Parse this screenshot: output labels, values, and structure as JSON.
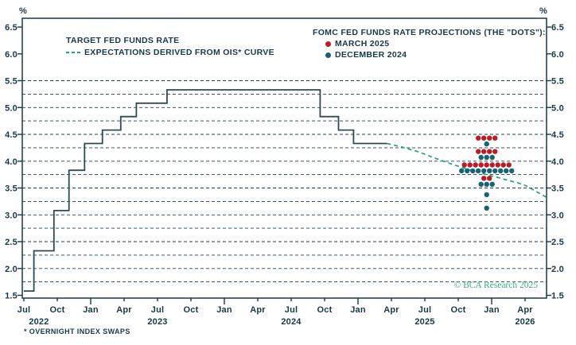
{
  "legend_left": {
    "line1": "TARGET FED FUNDS RATE",
    "line2": "EXPECTATIONS DERIVED FROM OIS* CURVE"
  },
  "legend_right": {
    "title": "FOMC FED FUNDS RATE PROJECTIONS (THE \"DOTS\"):",
    "items": [
      {
        "label": "MARCH 2025",
        "color": "#BC1B26"
      },
      {
        "label": "DECEMBER 2024",
        "color": "#156476"
      }
    ]
  },
  "footnote": "* OVERNIGHT INDEX SWAPS",
  "copyright": "© BCA Research 2025",
  "chart_data": {
    "type": "line",
    "title": "",
    "y_axis": {
      "unit": "%",
      "min": 1.5,
      "max": 6.5,
      "tick_step": 0.5,
      "tick_labels": [
        "6.5",
        "6.0",
        "5.5",
        "5.0",
        "4.5",
        "4.0",
        "3.5",
        "3.0",
        "2.5",
        "2.0",
        "1.5"
      ],
      "grid_values": [
        5.5,
        5.25,
        5.0,
        4.75,
        4.5,
        4.25,
        4.0,
        3.75,
        3.5,
        3.25,
        3.0,
        2.75,
        2.5,
        2.25,
        2.0,
        1.75
      ]
    },
    "x_axis": {
      "unit": "months_since_2022_07",
      "tick_labels": [
        "Jul",
        "Oct",
        "Jan",
        "Apr",
        "Jul",
        "Oct",
        "Jan",
        "Apr",
        "Jul",
        "Oct",
        "Jan",
        "Apr",
        "Jul",
        "Oct",
        "Jan",
        "Apr"
      ],
      "year_labels": [
        {
          "label": "2022",
          "q": 0.45
        },
        {
          "label": "2023",
          "q": 4
        },
        {
          "label": "2024",
          "q": 8
        },
        {
          "label": "2025",
          "q": 12
        },
        {
          "label": "2026",
          "q": 15
        }
      ]
    },
    "series": [
      {
        "name": "TARGET FED FUNDS RATE",
        "type": "step",
        "color": "#2C4B57",
        "points": [
          [
            0,
            1.58
          ],
          [
            0.9,
            2.33
          ],
          [
            2.7,
            3.08
          ],
          [
            4.05,
            3.83
          ],
          [
            5.45,
            4.33
          ],
          [
            7.05,
            4.58
          ],
          [
            8.7,
            4.83
          ],
          [
            10.1,
            5.08
          ],
          [
            12.85,
            5.33
          ],
          [
            26.6,
            4.83
          ],
          [
            28.25,
            4.58
          ],
          [
            29.6,
            4.33
          ],
          [
            32.6,
            4.33
          ]
        ]
      },
      {
        "name": "EXPECTATIONS DERIVED FROM OIS* CURVE",
        "type": "dashed_line",
        "color": "#1FA57F",
        "points": [
          [
            32.6,
            4.33
          ],
          [
            34,
            4.26
          ],
          [
            35.5,
            4.17
          ],
          [
            37,
            4.05
          ],
          [
            38.5,
            3.94
          ],
          [
            40,
            3.84
          ],
          [
            41.5,
            3.75
          ],
          [
            42.5,
            3.7
          ],
          [
            43.5,
            3.64
          ],
          [
            44.3,
            3.6
          ],
          [
            45,
            3.55
          ],
          [
            45.7,
            3.47
          ],
          [
            46.3,
            3.4
          ],
          [
            46.9,
            3.33
          ]
        ]
      },
      {
        "name": "MARCH 2025",
        "type": "dots",
        "color": "#BC1B26",
        "x_months": 41.55,
        "distribution": {
          "4.375": 4,
          "4.125": 4,
          "3.875": 9,
          "3.625": 2
        }
      },
      {
        "name": "DECEMBER 2024",
        "type": "dots",
        "color": "#156476",
        "x_months": 41.55,
        "distribution": {
          "4.375": 1,
          "4.125": 3,
          "3.875": 10,
          "3.625": 3,
          "3.375": 1,
          "3.125": 1
        }
      }
    ],
    "layout": {
      "grid": "dashed-horizontal",
      "legend_position": "top-inside",
      "dot_offset_when_overlap": 0.055
    }
  }
}
